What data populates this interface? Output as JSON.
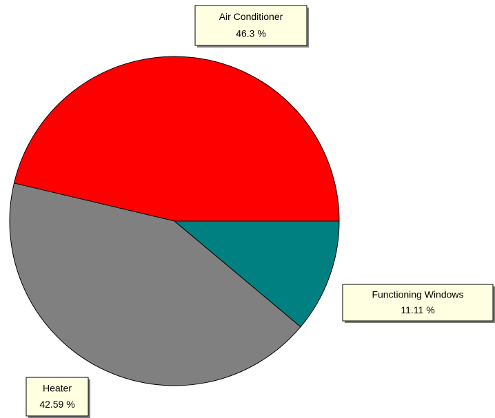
{
  "chart_data": {
    "type": "pie",
    "categories": [
      "Air Conditioner",
      "Heater",
      "Functioning Windows"
    ],
    "values": [
      46.3,
      42.59,
      11.11
    ],
    "value_labels": [
      "46.3 %",
      "42.59 %",
      "11.11 %"
    ],
    "colors": [
      "#ff0000",
      "#808080",
      "#008080"
    ]
  }
}
